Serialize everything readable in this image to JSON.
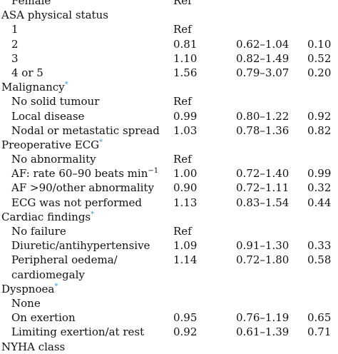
{
  "rows": [
    {
      "label": "Female",
      "or": "Ref",
      "ci": "",
      "p": "",
      "indent": true
    },
    {
      "label": "ASA physical status",
      "or": "",
      "ci": "",
      "p": "",
      "indent": false
    },
    {
      "label": "1",
      "or": "Ref",
      "ci": "",
      "p": "",
      "indent": true
    },
    {
      "label": "2",
      "or": "0.81",
      "ci": "0.62–1.04",
      "p": "0.10",
      "indent": true
    },
    {
      "label": "3",
      "or": "1.10",
      "ci": "0.82–1.49",
      "p": "0.52",
      "indent": true
    },
    {
      "label": "4 or 5",
      "or": "1.56",
      "ci": "0.79–3.07",
      "p": "0.20",
      "indent": true
    },
    {
      "label": "Malignancy",
      "asterisk": "*",
      "or": "",
      "ci": "",
      "p": "",
      "indent": false
    },
    {
      "label": "No solid tumour",
      "or": "Ref",
      "ci": "",
      "p": "",
      "indent": true
    },
    {
      "label": "Local disease",
      "or": "0.99",
      "ci": "0.80–1.22",
      "p": "0.92",
      "indent": true
    },
    {
      "label": "Nodal or metastatic spread",
      "or": "1.03",
      "ci": "0.78–1.36",
      "p": "0.82",
      "indent": true
    },
    {
      "label": "Preoperative ECG",
      "asterisk": "*",
      "or": "",
      "ci": "",
      "p": "",
      "indent": false
    },
    {
      "label": "No abnormality",
      "or": "Ref",
      "ci": "",
      "p": "",
      "indent": true
    },
    {
      "label": "AF: rate 60–90 beats min",
      "sup": "−1",
      "or": "1.00",
      "ci": "0.72–1.40",
      "p": "0.99",
      "indent": true
    },
    {
      "label": "AF >90/other abnormality",
      "or": "0.90",
      "ci": "0.72–1.11",
      "p": "0.32",
      "indent": true
    },
    {
      "label": "ECG was not performed",
      "or": "1.13",
      "ci": "0.83–1.54",
      "p": "0.44",
      "indent": true
    },
    {
      "label": "Cardiac findings",
      "asterisk": "*",
      "or": "",
      "ci": "",
      "p": "",
      "indent": false
    },
    {
      "label": "No failure",
      "or": "Ref",
      "ci": "",
      "p": "",
      "indent": true
    },
    {
      "label": "Diuretic/antihypertensive",
      "or": "1.09",
      "ci": "0.91–1.30",
      "p": "0.33",
      "indent": true
    },
    {
      "label": "Peripheral oedema/ cardiomegaly",
      "or": "1.14",
      "ci": "0.72–1.80",
      "p": "0.58",
      "indent": true,
      "tall": true
    },
    {
      "label": "Dyspnoea",
      "asterisk": "*",
      "or": "",
      "ci": "",
      "p": "",
      "indent": false
    },
    {
      "label": "None",
      "or": "",
      "ci": "",
      "p": "",
      "indent": true
    },
    {
      "label": "On exertion",
      "or": "0.95",
      "ci": "0.76–1.19",
      "p": "0.65",
      "indent": true
    },
    {
      "label": "Limiting exertion/at rest",
      "or": "0.92",
      "ci": "0.61–1.39",
      "p": "0.71",
      "indent": true
    },
    {
      "label": "NYHA class",
      "or": "",
      "ci": "",
      "p": "",
      "indent": false
    }
  ]
}
